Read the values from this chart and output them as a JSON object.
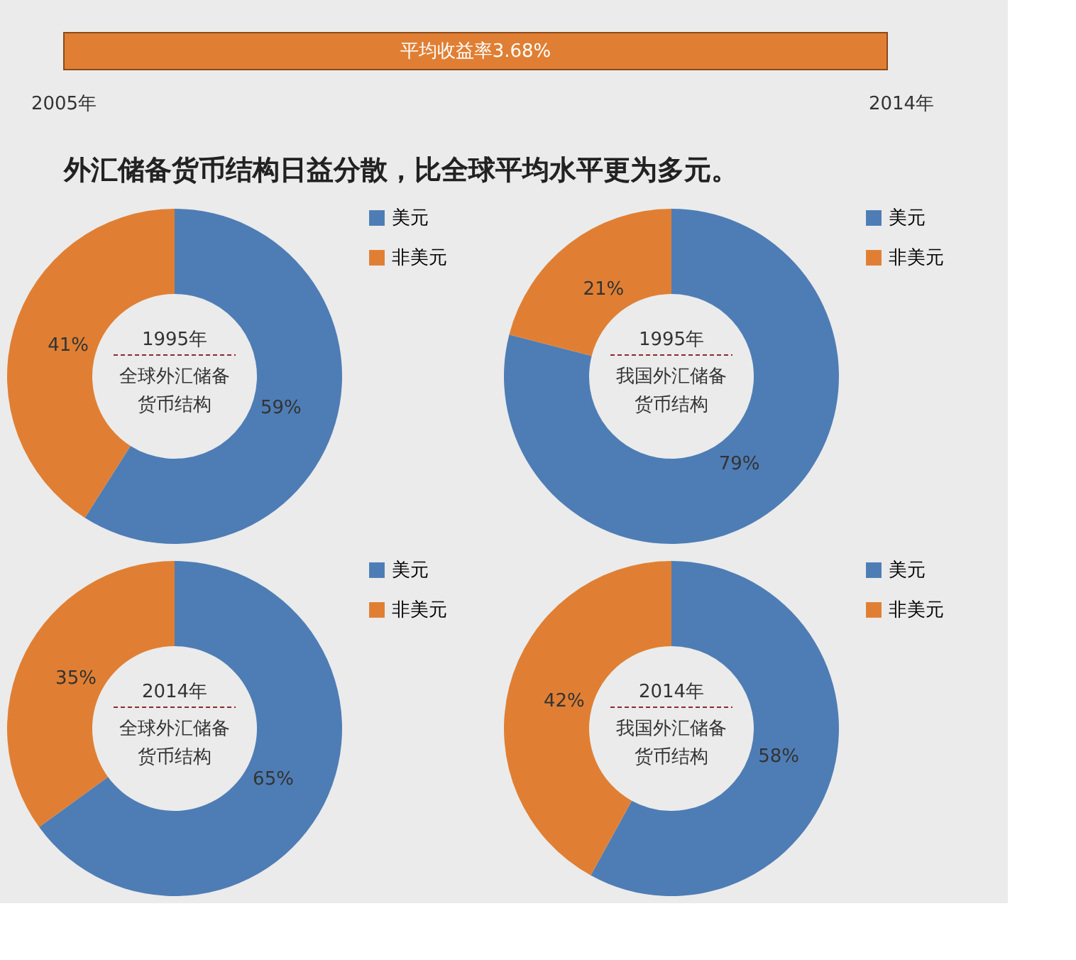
{
  "chart_data": [
    {
      "type": "other",
      "title": "外汇储备货币结构日益分散，比全球平均水平更为多元。",
      "annotations": [
        "平均收益率3.68%",
        "2005年",
        "2014年"
      ]
    },
    {
      "type": "donut",
      "categories": [
        "美元",
        "非美元"
      ],
      "values": [
        59,
        41
      ],
      "value_labels": [
        "59%",
        "41%"
      ],
      "colors": [
        "#4e7db5",
        "#e07f33"
      ],
      "legend": "right",
      "annotations": [
        "1995年",
        "全球外汇储备货币结构"
      ]
    },
    {
      "type": "donut",
      "categories": [
        "美元",
        "非美元"
      ],
      "values": [
        79,
        21
      ],
      "value_labels": [
        "79%",
        "21%"
      ],
      "colors": [
        "#4e7db5",
        "#e07f33"
      ],
      "legend": "right",
      "annotations": [
        "1995年",
        "我国外汇储备货币结构"
      ]
    },
    {
      "type": "donut",
      "categories": [
        "美元",
        "非美元"
      ],
      "values": [
        65,
        35
      ],
      "value_labels": [
        "65%",
        "35%"
      ],
      "colors": [
        "#4e7db5",
        "#e07f33"
      ],
      "legend": "right",
      "annotations": [
        "2014年",
        "全球外汇储备货币结构"
      ]
    },
    {
      "type": "donut",
      "categories": [
        "美元",
        "非美元"
      ],
      "values": [
        58,
        42
      ],
      "value_labels": [
        "58%",
        "42%"
      ],
      "colors": [
        "#4e7db5",
        "#e07f33"
      ],
      "legend": "right",
      "annotations": [
        "2014年",
        "我国外汇储备货币结构"
      ]
    }
  ]
}
